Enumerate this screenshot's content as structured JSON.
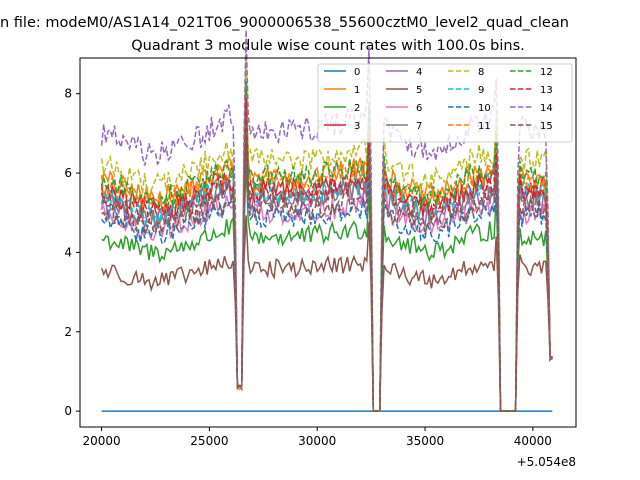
{
  "chart_data": {
    "type": "line",
    "suptitle": "n file: modeM0/AS1A14_021T06_9000006538_55600cztM0_level2_quad_clean",
    "title": "Quadrant 3 module wise count rates with 100.0s bins.",
    "xlabel": "",
    "ylabel": "",
    "x_offset_label": "+5.054e8",
    "xlim": [
      19000,
      42000
    ],
    "ylim": [
      -0.4,
      8.9
    ],
    "x_ticks": [
      20000,
      25000,
      30000,
      35000,
      40000
    ],
    "x_tick_labels": [
      "20000",
      "25000",
      "30000",
      "35000",
      "40000"
    ],
    "y_ticks": [
      0,
      2,
      4,
      6,
      8
    ],
    "y_tick_labels": [
      "0",
      "2",
      "4",
      "6",
      "8"
    ],
    "x_range": [
      20000,
      40900
    ],
    "dips": [
      {
        "start": 26300,
        "end": 26500,
        "min": 0.55
      },
      {
        "start": 32600,
        "end": 32900,
        "min": 0.0
      },
      {
        "start": 38500,
        "end": 39200,
        "min": 0.0
      },
      {
        "start": 40800,
        "end": 40900,
        "min": 1.3
      }
    ],
    "series": [
      {
        "name": "0",
        "color": "#1f77b4",
        "style": "solid",
        "level": 0.0
      },
      {
        "name": "1",
        "color": "#ff7f0e",
        "style": "solid",
        "level": 5.9
      },
      {
        "name": "2",
        "color": "#2ca02c",
        "style": "solid",
        "level": 4.4
      },
      {
        "name": "3",
        "color": "#d62728",
        "style": "solid",
        "level": 5.6
      },
      {
        "name": "4",
        "color": "#9467bd",
        "style": "solid",
        "level": 5.3
      },
      {
        "name": "5",
        "color": "#8c564b",
        "style": "solid",
        "level": 3.6
      },
      {
        "name": "6",
        "color": "#e377c2",
        "style": "solid",
        "level": 5.0
      },
      {
        "name": "7",
        "color": "#7f7f7f",
        "style": "solid",
        "level": 5.4
      },
      {
        "name": "8",
        "color": "#bcbd22",
        "style": "dashed",
        "level": 6.3
      },
      {
        "name": "9",
        "color": "#17becf",
        "style": "dashed",
        "level": 5.5
      },
      {
        "name": "10",
        "color": "#1f77b4",
        "style": "dashed",
        "level": 4.9
      },
      {
        "name": "11",
        "color": "#ff7f0e",
        "style": "dashed",
        "level": 5.8
      },
      {
        "name": "12",
        "color": "#2ca02c",
        "style": "dashed",
        "level": 5.9
      },
      {
        "name": "13",
        "color": "#d62728",
        "style": "dashed",
        "level": 5.5
      },
      {
        "name": "14",
        "color": "#9467bd",
        "style": "dashed",
        "level": 7.1
      },
      {
        "name": "15",
        "color": "#8c564b",
        "style": "dashed",
        "level": 5.1
      }
    ]
  }
}
